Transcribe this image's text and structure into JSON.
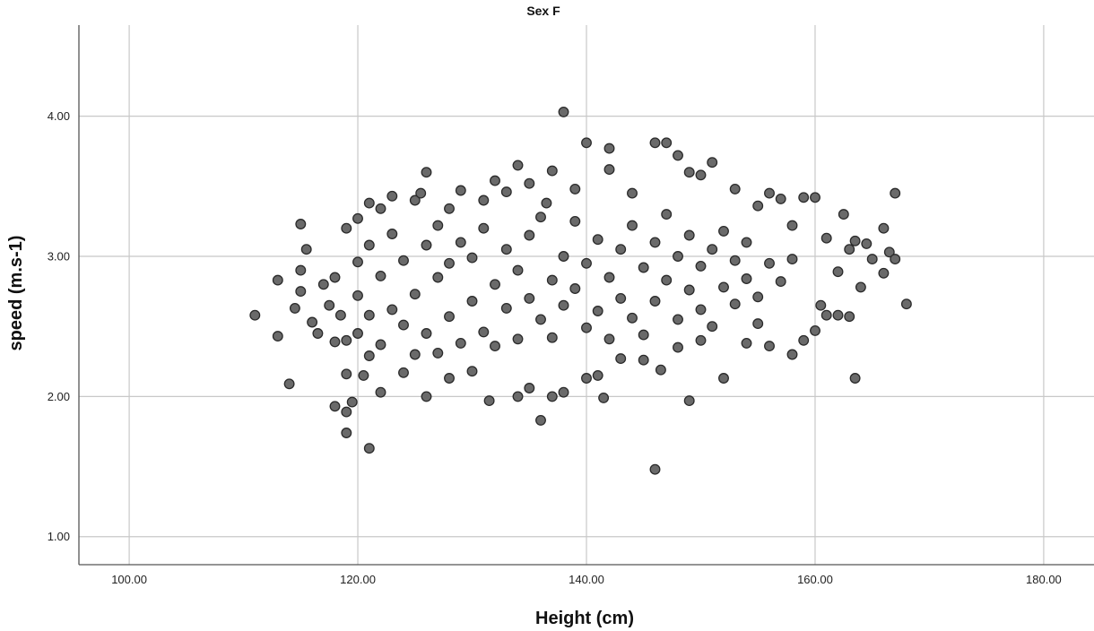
{
  "chart_data": {
    "type": "scatter",
    "title": "Sex F",
    "xlabel": "Height (cm)",
    "ylabel": "speed (m.s-1)",
    "xlim": [
      95.6,
      184.4
    ],
    "ylim": [
      0.8,
      4.65
    ],
    "x_ticks": [
      100,
      120,
      140,
      160,
      180
    ],
    "x_tick_labels": [
      "100.00",
      "120.00",
      "140.00",
      "160.00",
      "180.00"
    ],
    "y_ticks": [
      1,
      2,
      3,
      4
    ],
    "y_tick_labels": [
      "1.00",
      "2.00",
      "3.00",
      "4.00"
    ],
    "grid": true,
    "legend": "none",
    "colors": {
      "marker_fill": "#6a6a6a",
      "marker_edge": "#2a2a2a",
      "grid": "#c8c8c8"
    },
    "points": [
      [
        111.0,
        2.58
      ],
      [
        113.0,
        2.43
      ],
      [
        113.0,
        2.83
      ],
      [
        114.0,
        2.09
      ],
      [
        114.5,
        2.63
      ],
      [
        115.0,
        3.23
      ],
      [
        115.0,
        2.75
      ],
      [
        115.0,
        2.9
      ],
      [
        115.5,
        3.05
      ],
      [
        116.0,
        2.53
      ],
      [
        116.5,
        2.45
      ],
      [
        117.0,
        2.8
      ],
      [
        117.5,
        2.65
      ],
      [
        118.0,
        2.85
      ],
      [
        118.0,
        2.39
      ],
      [
        118.0,
        1.93
      ],
      [
        118.5,
        2.58
      ],
      [
        119.0,
        3.2
      ],
      [
        119.0,
        2.4
      ],
      [
        119.0,
        1.89
      ],
      [
        119.0,
        1.74
      ],
      [
        119.0,
        2.16
      ],
      [
        119.5,
        1.96
      ],
      [
        120.0,
        3.27
      ],
      [
        120.0,
        2.45
      ],
      [
        120.5,
        2.15
      ],
      [
        121.0,
        3.38
      ],
      [
        121.0,
        1.63
      ],
      [
        121.0,
        2.29
      ],
      [
        122.0,
        2.03
      ],
      [
        122.0,
        3.34
      ],
      [
        123.0,
        3.43
      ],
      [
        124.0,
        2.17
      ],
      [
        125.0,
        3.4
      ],
      [
        125.5,
        3.45
      ],
      [
        126.0,
        3.6
      ],
      [
        126.0,
        2.0
      ],
      [
        127.0,
        2.31
      ],
      [
        128.0,
        3.34
      ],
      [
        128.0,
        2.13
      ],
      [
        129.0,
        3.47
      ],
      [
        130.0,
        2.18
      ],
      [
        131.0,
        3.4
      ],
      [
        131.5,
        1.97
      ],
      [
        132.0,
        3.54
      ],
      [
        133.0,
        3.46
      ],
      [
        134.0,
        3.65
      ],
      [
        134.0,
        2.0
      ],
      [
        135.0,
        3.52
      ],
      [
        135.0,
        2.06
      ],
      [
        136.0,
        1.83
      ],
      [
        136.5,
        3.38
      ],
      [
        137.0,
        3.61
      ],
      [
        137.0,
        2.0
      ],
      [
        138.0,
        4.03
      ],
      [
        138.0,
        2.03
      ],
      [
        139.0,
        3.48
      ],
      [
        140.0,
        3.81
      ],
      [
        140.0,
        2.13
      ],
      [
        141.0,
        2.15
      ],
      [
        141.5,
        1.99
      ],
      [
        142.0,
        3.77
      ],
      [
        142.0,
        3.62
      ],
      [
        143.0,
        2.27
      ],
      [
        144.0,
        3.45
      ],
      [
        145.0,
        2.26
      ],
      [
        146.0,
        3.81
      ],
      [
        146.0,
        1.48
      ],
      [
        146.5,
        2.19
      ],
      [
        147.0,
        3.81
      ],
      [
        148.0,
        3.72
      ],
      [
        148.0,
        2.35
      ],
      [
        149.0,
        3.6
      ],
      [
        149.0,
        1.97
      ],
      [
        150.0,
        3.58
      ],
      [
        150.0,
        2.4
      ],
      [
        151.0,
        3.67
      ],
      [
        152.0,
        2.13
      ],
      [
        153.0,
        3.48
      ],
      [
        154.0,
        2.38
      ],
      [
        155.0,
        3.36
      ],
      [
        155.0,
        2.52
      ],
      [
        156.0,
        3.45
      ],
      [
        156.0,
        2.36
      ],
      [
        157.0,
        3.41
      ],
      [
        158.0,
        2.3
      ],
      [
        158.0,
        3.22
      ],
      [
        159.0,
        3.42
      ],
      [
        159.0,
        2.4
      ],
      [
        160.0,
        3.42
      ],
      [
        160.0,
        2.47
      ],
      [
        160.5,
        2.65
      ],
      [
        161.0,
        2.58
      ],
      [
        161.0,
        3.13
      ],
      [
        162.0,
        2.58
      ],
      [
        162.0,
        2.89
      ],
      [
        162.5,
        3.3
      ],
      [
        163.0,
        2.57
      ],
      [
        163.0,
        3.05
      ],
      [
        163.5,
        2.13
      ],
      [
        163.5,
        3.11
      ],
      [
        164.0,
        2.78
      ],
      [
        164.5,
        3.09
      ],
      [
        165.0,
        2.98
      ],
      [
        166.0,
        3.2
      ],
      [
        166.0,
        2.88
      ],
      [
        166.5,
        3.03
      ],
      [
        167.0,
        3.45
      ],
      [
        167.0,
        2.98
      ],
      [
        168.0,
        2.66
      ],
      [
        120.0,
        2.72
      ],
      [
        120.0,
        2.96
      ],
      [
        121.0,
        2.58
      ],
      [
        121.0,
        3.08
      ],
      [
        122.0,
        2.37
      ],
      [
        122.0,
        2.86
      ],
      [
        123.0,
        2.62
      ],
      [
        123.0,
        3.16
      ],
      [
        124.0,
        2.51
      ],
      [
        124.0,
        2.97
      ],
      [
        125.0,
        2.73
      ],
      [
        125.0,
        2.3
      ],
      [
        126.0,
        3.08
      ],
      [
        126.0,
        2.45
      ],
      [
        127.0,
        2.85
      ],
      [
        127.0,
        3.22
      ],
      [
        128.0,
        2.57
      ],
      [
        128.0,
        2.95
      ],
      [
        129.0,
        2.38
      ],
      [
        129.0,
        3.1
      ],
      [
        130.0,
        2.68
      ],
      [
        130.0,
        2.99
      ],
      [
        131.0,
        2.46
      ],
      [
        131.0,
        3.2
      ],
      [
        132.0,
        2.8
      ],
      [
        132.0,
        2.36
      ],
      [
        133.0,
        3.05
      ],
      [
        133.0,
        2.63
      ],
      [
        134.0,
        2.9
      ],
      [
        134.0,
        2.41
      ],
      [
        135.0,
        3.15
      ],
      [
        135.0,
        2.7
      ],
      [
        136.0,
        2.55
      ],
      [
        136.0,
        3.28
      ],
      [
        137.0,
        2.83
      ],
      [
        137.0,
        2.42
      ],
      [
        138.0,
        3.0
      ],
      [
        138.0,
        2.65
      ],
      [
        139.0,
        2.77
      ],
      [
        139.0,
        3.25
      ],
      [
        140.0,
        2.49
      ],
      [
        140.0,
        2.95
      ],
      [
        141.0,
        3.12
      ],
      [
        141.0,
        2.61
      ],
      [
        142.0,
        2.85
      ],
      [
        142.0,
        2.41
      ],
      [
        143.0,
        3.05
      ],
      [
        143.0,
        2.7
      ],
      [
        144.0,
        2.56
      ],
      [
        144.0,
        3.22
      ],
      [
        145.0,
        2.92
      ],
      [
        145.0,
        2.44
      ],
      [
        146.0,
        3.1
      ],
      [
        146.0,
        2.68
      ],
      [
        147.0,
        2.83
      ],
      [
        147.0,
        3.3
      ],
      [
        148.0,
        2.55
      ],
      [
        148.0,
        3.0
      ],
      [
        149.0,
        2.76
      ],
      [
        149.0,
        3.15
      ],
      [
        150.0,
        2.62
      ],
      [
        150.0,
        2.93
      ],
      [
        151.0,
        3.05
      ],
      [
        151.0,
        2.5
      ],
      [
        152.0,
        2.78
      ],
      [
        152.0,
        3.18
      ],
      [
        153.0,
        2.66
      ],
      [
        153.0,
        2.97
      ],
      [
        154.0,
        2.84
      ],
      [
        154.0,
        3.1
      ],
      [
        155.0,
        2.71
      ],
      [
        156.0,
        2.95
      ],
      [
        157.0,
        2.82
      ],
      [
        158.0,
        2.98
      ]
    ]
  }
}
